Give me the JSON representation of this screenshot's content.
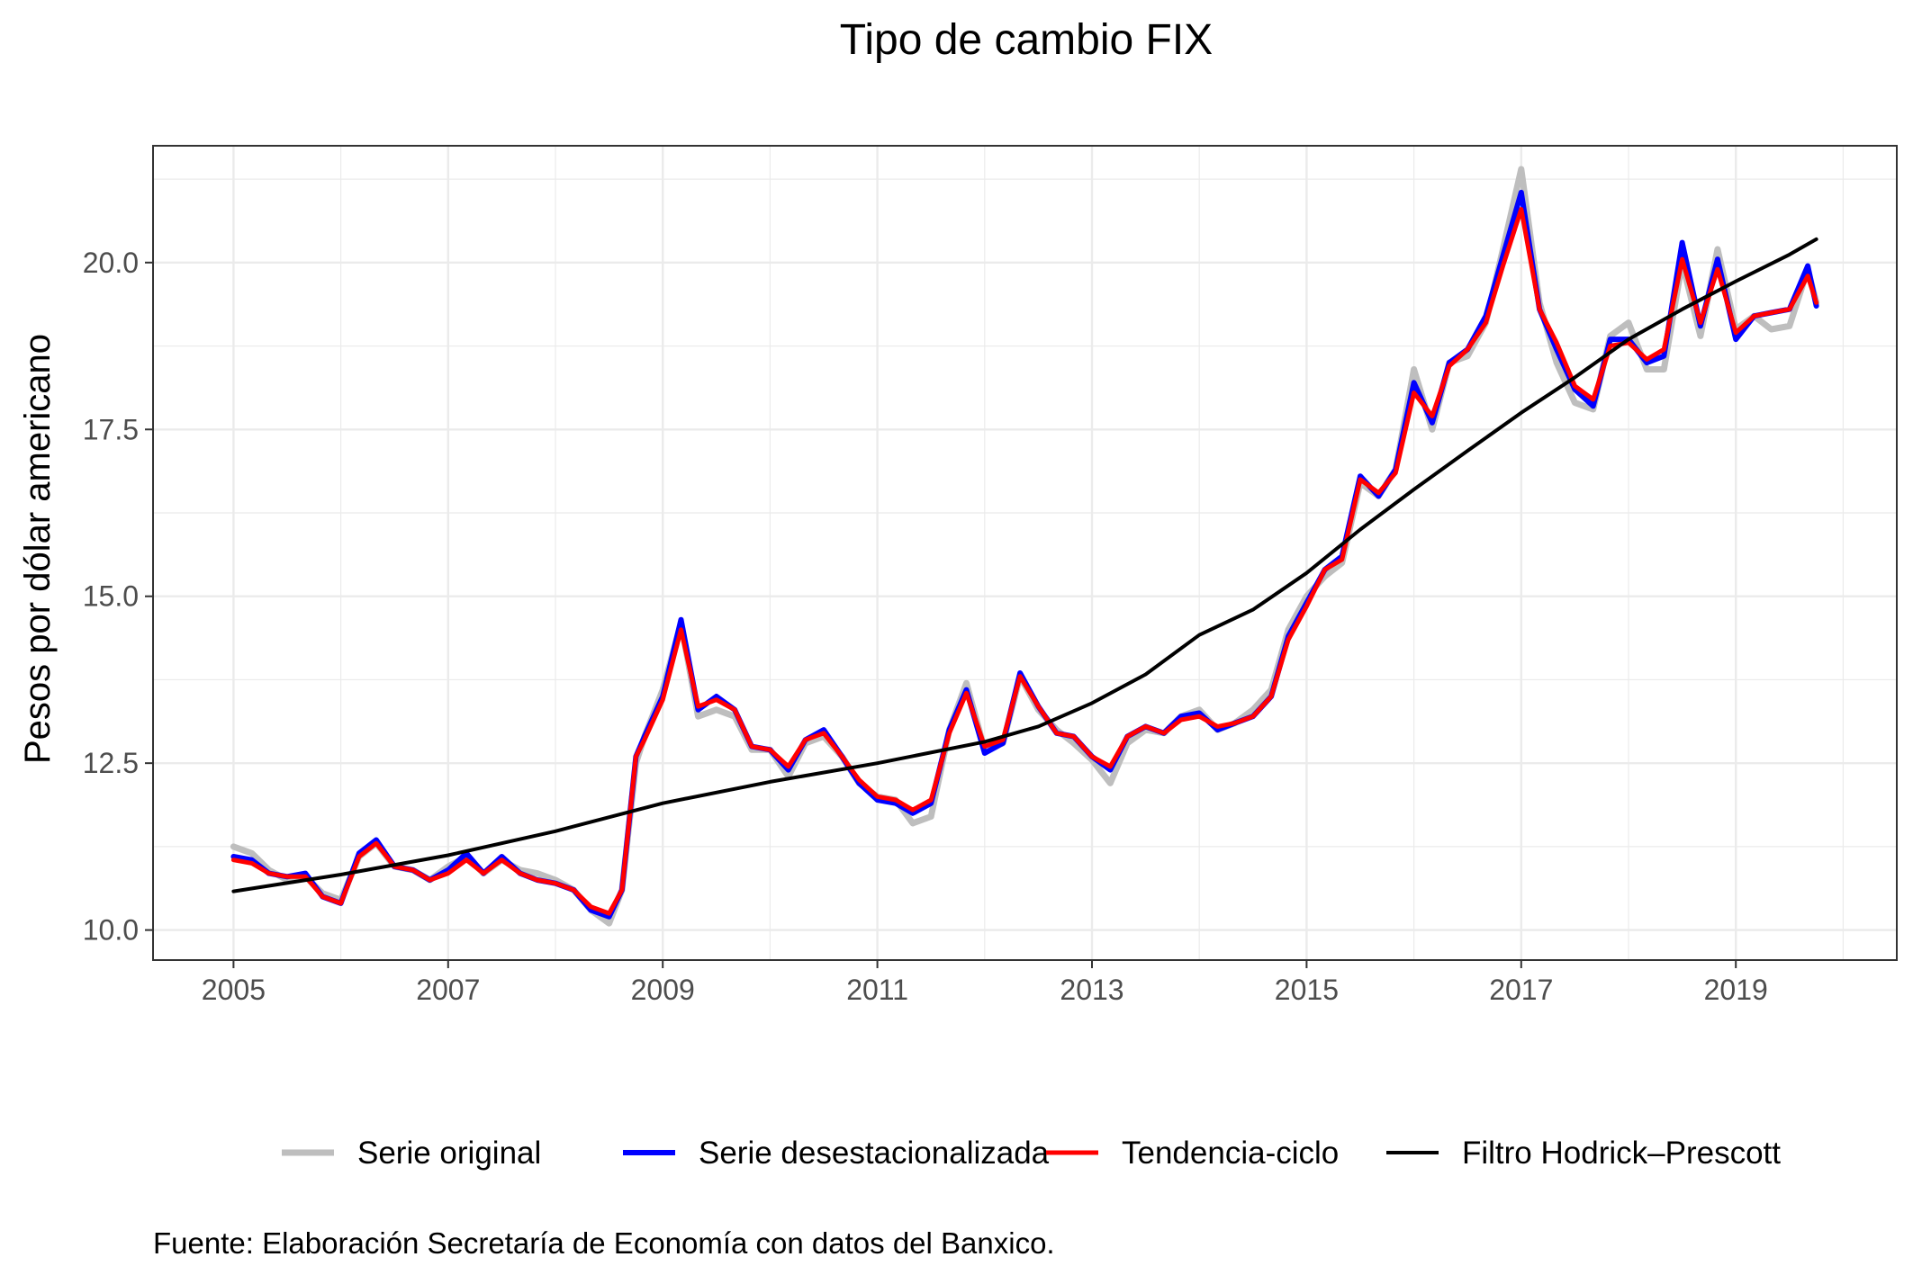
{
  "chart_data": {
    "type": "line",
    "title": "Tipo de cambio FIX",
    "xlabel": "",
    "ylabel": "Pesos por dólar americano",
    "caption": "Fuente: Elaboración Secretaría de Economía con datos del Banxico.",
    "xlim": [
      2004.25,
      2020.5
    ],
    "ylim": [
      9.55,
      21.75
    ],
    "x_ticks": [
      2005,
      2007,
      2009,
      2011,
      2013,
      2015,
      2017,
      2019
    ],
    "y_ticks": [
      10.0,
      12.5,
      15.0,
      17.5,
      20.0
    ],
    "y_tick_labels": [
      "10.0",
      "12.5",
      "15.0",
      "17.5",
      "20.0"
    ],
    "grid": true,
    "legend_position": "bottom",
    "colors": {
      "serie_original": "#bebebe",
      "serie_desestacionalizada": "#0000ff",
      "tendencia_ciclo": "#ff0000",
      "hodrick_prescott": "#000000",
      "grid": "#ebebeb",
      "panel_border": "#333333"
    },
    "series": [
      {
        "name": "Serie original",
        "color": "#bebebe",
        "x": [
          2005.0,
          2005.17,
          2005.33,
          2005.5,
          2005.67,
          2005.83,
          2006.0,
          2006.17,
          2006.33,
          2006.5,
          2006.67,
          2006.83,
          2007.0,
          2007.17,
          2007.33,
          2007.5,
          2007.67,
          2007.83,
          2008.0,
          2008.17,
          2008.33,
          2008.5,
          2008.62,
          2008.75,
          2008.83,
          2009.0,
          2009.17,
          2009.33,
          2009.5,
          2009.67,
          2009.83,
          2010.0,
          2010.17,
          2010.33,
          2010.5,
          2010.67,
          2010.83,
          2011.0,
          2011.17,
          2011.33,
          2011.5,
          2011.67,
          2011.83,
          2012.0,
          2012.17,
          2012.33,
          2012.5,
          2012.67,
          2012.83,
          2013.0,
          2013.17,
          2013.33,
          2013.5,
          2013.67,
          2013.83,
          2014.0,
          2014.17,
          2014.33,
          2014.5,
          2014.67,
          2014.83,
          2015.0,
          2015.17,
          2015.33,
          2015.5,
          2015.67,
          2015.83,
          2016.0,
          2016.17,
          2016.33,
          2016.5,
          2016.67,
          2016.83,
          2017.0,
          2017.17,
          2017.33,
          2017.5,
          2017.67,
          2017.83,
          2018.0,
          2018.17,
          2018.33,
          2018.5,
          2018.67,
          2018.83,
          2019.0,
          2019.17,
          2019.33,
          2019.5,
          2019.67,
          2019.75
        ],
        "values": [
          11.25,
          11.15,
          10.9,
          10.75,
          10.8,
          10.55,
          10.45,
          11.1,
          11.3,
          10.95,
          10.9,
          10.75,
          10.95,
          11.1,
          10.85,
          11.05,
          10.9,
          10.85,
          10.75,
          10.6,
          10.3,
          10.1,
          10.6,
          12.5,
          12.9,
          13.6,
          14.6,
          13.2,
          13.3,
          13.2,
          12.7,
          12.7,
          12.3,
          12.8,
          12.9,
          12.6,
          12.2,
          12.0,
          11.95,
          11.6,
          11.7,
          13.0,
          13.7,
          12.7,
          12.8,
          13.8,
          13.3,
          13.0,
          12.8,
          12.55,
          12.2,
          12.8,
          13.0,
          12.95,
          13.2,
          13.3,
          13.0,
          13.1,
          13.3,
          13.6,
          14.5,
          15.0,
          15.3,
          15.5,
          16.7,
          16.5,
          16.9,
          18.4,
          17.5,
          18.5,
          18.6,
          19.1,
          20.2,
          21.4,
          19.4,
          18.5,
          17.9,
          17.8,
          18.9,
          19.1,
          18.4,
          18.4,
          20.0,
          18.9,
          20.2,
          19.0,
          19.2,
          19.0,
          19.05,
          19.9,
          19.4
        ]
      },
      {
        "name": "Serie desestacionalizada",
        "color": "#0000ff",
        "x": [
          2005.0,
          2005.17,
          2005.33,
          2005.5,
          2005.67,
          2005.83,
          2006.0,
          2006.17,
          2006.33,
          2006.5,
          2006.67,
          2006.83,
          2007.0,
          2007.17,
          2007.33,
          2007.5,
          2007.67,
          2007.83,
          2008.0,
          2008.17,
          2008.33,
          2008.5,
          2008.62,
          2008.75,
          2008.83,
          2009.0,
          2009.17,
          2009.33,
          2009.5,
          2009.67,
          2009.83,
          2010.0,
          2010.17,
          2010.33,
          2010.5,
          2010.67,
          2010.83,
          2011.0,
          2011.17,
          2011.33,
          2011.5,
          2011.67,
          2011.83,
          2012.0,
          2012.17,
          2012.33,
          2012.5,
          2012.67,
          2012.83,
          2013.0,
          2013.17,
          2013.33,
          2013.5,
          2013.67,
          2013.83,
          2014.0,
          2014.17,
          2014.33,
          2014.5,
          2014.67,
          2014.83,
          2015.0,
          2015.17,
          2015.33,
          2015.5,
          2015.67,
          2015.83,
          2016.0,
          2016.17,
          2016.33,
          2016.5,
          2016.67,
          2016.83,
          2017.0,
          2017.17,
          2017.33,
          2017.5,
          2017.67,
          2017.83,
          2018.0,
          2018.17,
          2018.33,
          2018.5,
          2018.67,
          2018.83,
          2019.0,
          2019.17,
          2019.33,
          2019.5,
          2019.67,
          2019.75
        ],
        "values": [
          11.1,
          11.05,
          10.85,
          10.8,
          10.85,
          10.5,
          10.4,
          11.15,
          11.35,
          10.95,
          10.9,
          10.75,
          10.9,
          11.15,
          10.85,
          11.1,
          10.85,
          10.75,
          10.7,
          10.6,
          10.3,
          10.2,
          10.6,
          12.6,
          12.9,
          13.5,
          14.65,
          13.3,
          13.5,
          13.3,
          12.75,
          12.7,
          12.4,
          12.85,
          13.0,
          12.6,
          12.2,
          11.95,
          11.9,
          11.75,
          11.9,
          13.0,
          13.6,
          12.65,
          12.8,
          13.85,
          13.35,
          12.95,
          12.9,
          12.6,
          12.4,
          12.9,
          13.05,
          12.95,
          13.2,
          13.25,
          13.0,
          13.1,
          13.2,
          13.5,
          14.4,
          14.9,
          15.4,
          15.6,
          16.8,
          16.5,
          16.9,
          18.2,
          17.6,
          18.5,
          18.7,
          19.2,
          20.1,
          21.05,
          19.3,
          18.7,
          18.1,
          17.85,
          18.85,
          18.85,
          18.5,
          18.6,
          20.3,
          19.05,
          20.05,
          18.85,
          19.2,
          19.25,
          19.3,
          19.95,
          19.35
        ]
      },
      {
        "name": "Tendencia-ciclo",
        "color": "#ff0000",
        "x": [
          2005.0,
          2005.17,
          2005.33,
          2005.5,
          2005.67,
          2005.83,
          2006.0,
          2006.17,
          2006.33,
          2006.5,
          2006.67,
          2006.83,
          2007.0,
          2007.17,
          2007.33,
          2007.5,
          2007.67,
          2007.83,
          2008.0,
          2008.17,
          2008.33,
          2008.5,
          2008.62,
          2008.75,
          2008.83,
          2009.0,
          2009.17,
          2009.33,
          2009.5,
          2009.67,
          2009.83,
          2010.0,
          2010.17,
          2010.33,
          2010.5,
          2010.67,
          2010.83,
          2011.0,
          2011.17,
          2011.33,
          2011.5,
          2011.67,
          2011.83,
          2012.0,
          2012.17,
          2012.33,
          2012.5,
          2012.67,
          2012.83,
          2013.0,
          2013.17,
          2013.33,
          2013.5,
          2013.67,
          2013.83,
          2014.0,
          2014.17,
          2014.33,
          2014.5,
          2014.67,
          2014.83,
          2015.0,
          2015.17,
          2015.33,
          2015.5,
          2015.67,
          2015.83,
          2016.0,
          2016.17,
          2016.33,
          2016.5,
          2016.67,
          2016.83,
          2017.0,
          2017.17,
          2017.33,
          2017.5,
          2017.67,
          2017.83,
          2018.0,
          2018.17,
          2018.33,
          2018.5,
          2018.67,
          2018.83,
          2019.0,
          2019.17,
          2019.33,
          2019.5,
          2019.67,
          2019.75
        ],
        "values": [
          11.05,
          11.0,
          10.85,
          10.8,
          10.8,
          10.5,
          10.4,
          11.1,
          11.3,
          10.95,
          10.9,
          10.75,
          10.85,
          11.05,
          10.85,
          11.05,
          10.85,
          10.75,
          10.7,
          10.6,
          10.35,
          10.25,
          10.6,
          12.6,
          12.85,
          13.45,
          14.5,
          13.35,
          13.45,
          13.3,
          12.75,
          12.7,
          12.45,
          12.85,
          12.95,
          12.6,
          12.25,
          12.0,
          11.95,
          11.8,
          11.95,
          12.95,
          13.55,
          12.75,
          12.85,
          13.8,
          13.35,
          12.95,
          12.9,
          12.6,
          12.45,
          12.9,
          13.05,
          12.95,
          13.15,
          13.2,
          13.05,
          13.1,
          13.2,
          13.5,
          14.35,
          14.85,
          15.4,
          15.55,
          16.75,
          16.55,
          16.85,
          18.05,
          17.7,
          18.45,
          18.7,
          19.1,
          19.95,
          20.8,
          19.3,
          18.8,
          18.15,
          17.95,
          18.75,
          18.8,
          18.55,
          18.7,
          20.05,
          19.1,
          19.9,
          18.95,
          19.2,
          19.25,
          19.3,
          19.8,
          19.4
        ]
      },
      {
        "name": "Filtro Hodrick–Prescott",
        "color": "#000000",
        "x": [
          2005.0,
          2006.0,
          2007.0,
          2008.0,
          2009.0,
          2010.0,
          2011.0,
          2012.0,
          2012.5,
          2013.0,
          2013.5,
          2014.0,
          2014.5,
          2015.0,
          2015.5,
          2016.0,
          2016.5,
          2017.0,
          2017.5,
          2018.0,
          2018.5,
          2019.0,
          2019.5,
          2019.75
        ],
        "values": [
          10.58,
          10.83,
          11.12,
          11.48,
          11.9,
          12.22,
          12.5,
          12.82,
          13.05,
          13.4,
          13.83,
          14.42,
          14.8,
          15.35,
          16.0,
          16.6,
          17.18,
          17.75,
          18.28,
          18.85,
          19.3,
          19.72,
          20.12,
          20.35
        ]
      }
    ]
  }
}
